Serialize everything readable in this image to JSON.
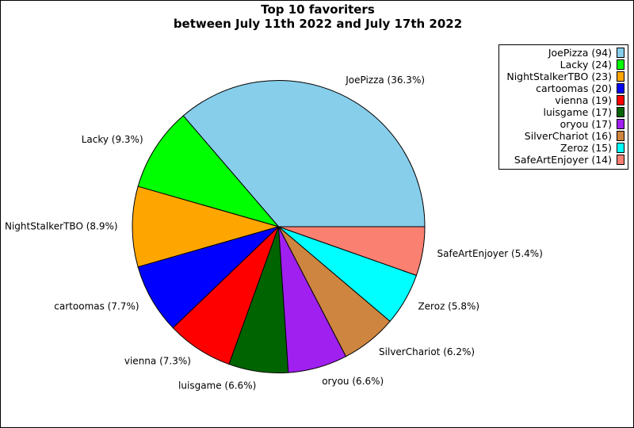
{
  "chart_data": {
    "type": "pie",
    "title_lines": [
      "Top 10 favoriters",
      "between July 11th 2022 and July 17th 2022"
    ],
    "labels": [
      "JoePizza",
      "Lacky",
      "NightStalkerTBO",
      "cartoomas",
      "vienna",
      "luisgame",
      "oryou",
      "SilverChariot",
      "Zeroz",
      "SafeArtEnjoyer"
    ],
    "values": [
      94,
      24,
      23,
      20,
      19,
      17,
      17,
      16,
      15,
      14
    ],
    "slice_labels": [
      "JoePizza (36.3%)",
      "Lacky (9.3%)",
      "NightStalkerTBO (8.9%)",
      "cartoomas (7.7%)",
      "vienna (7.3%)",
      "luisgame (6.6%)",
      "oryou (6.6%)",
      "SilverChariot (6.2%)",
      "Zeroz (5.8%)",
      "SafeArtEnjoyer (5.4%)"
    ],
    "legend_entries": [
      "JoePizza (94)",
      "Lacky (24)",
      "NightStalkerTBO (23)",
      "cartoomas (20)",
      "vienna (19)",
      "luisgame (17)",
      "oryou (17)",
      "SilverChariot (16)",
      "Zeroz (15)",
      "SafeArtEnjoyer (14)"
    ],
    "colors": [
      "#87ceeb",
      "#00ff00",
      "#ffa500",
      "#0000ff",
      "#ff0000",
      "#006400",
      "#a020f0",
      "#cd853f",
      "#00ffff",
      "#fa8072"
    ],
    "start_angle_deg": 0,
    "direction": "counterclockwise",
    "legend_placement": "top-right"
  }
}
